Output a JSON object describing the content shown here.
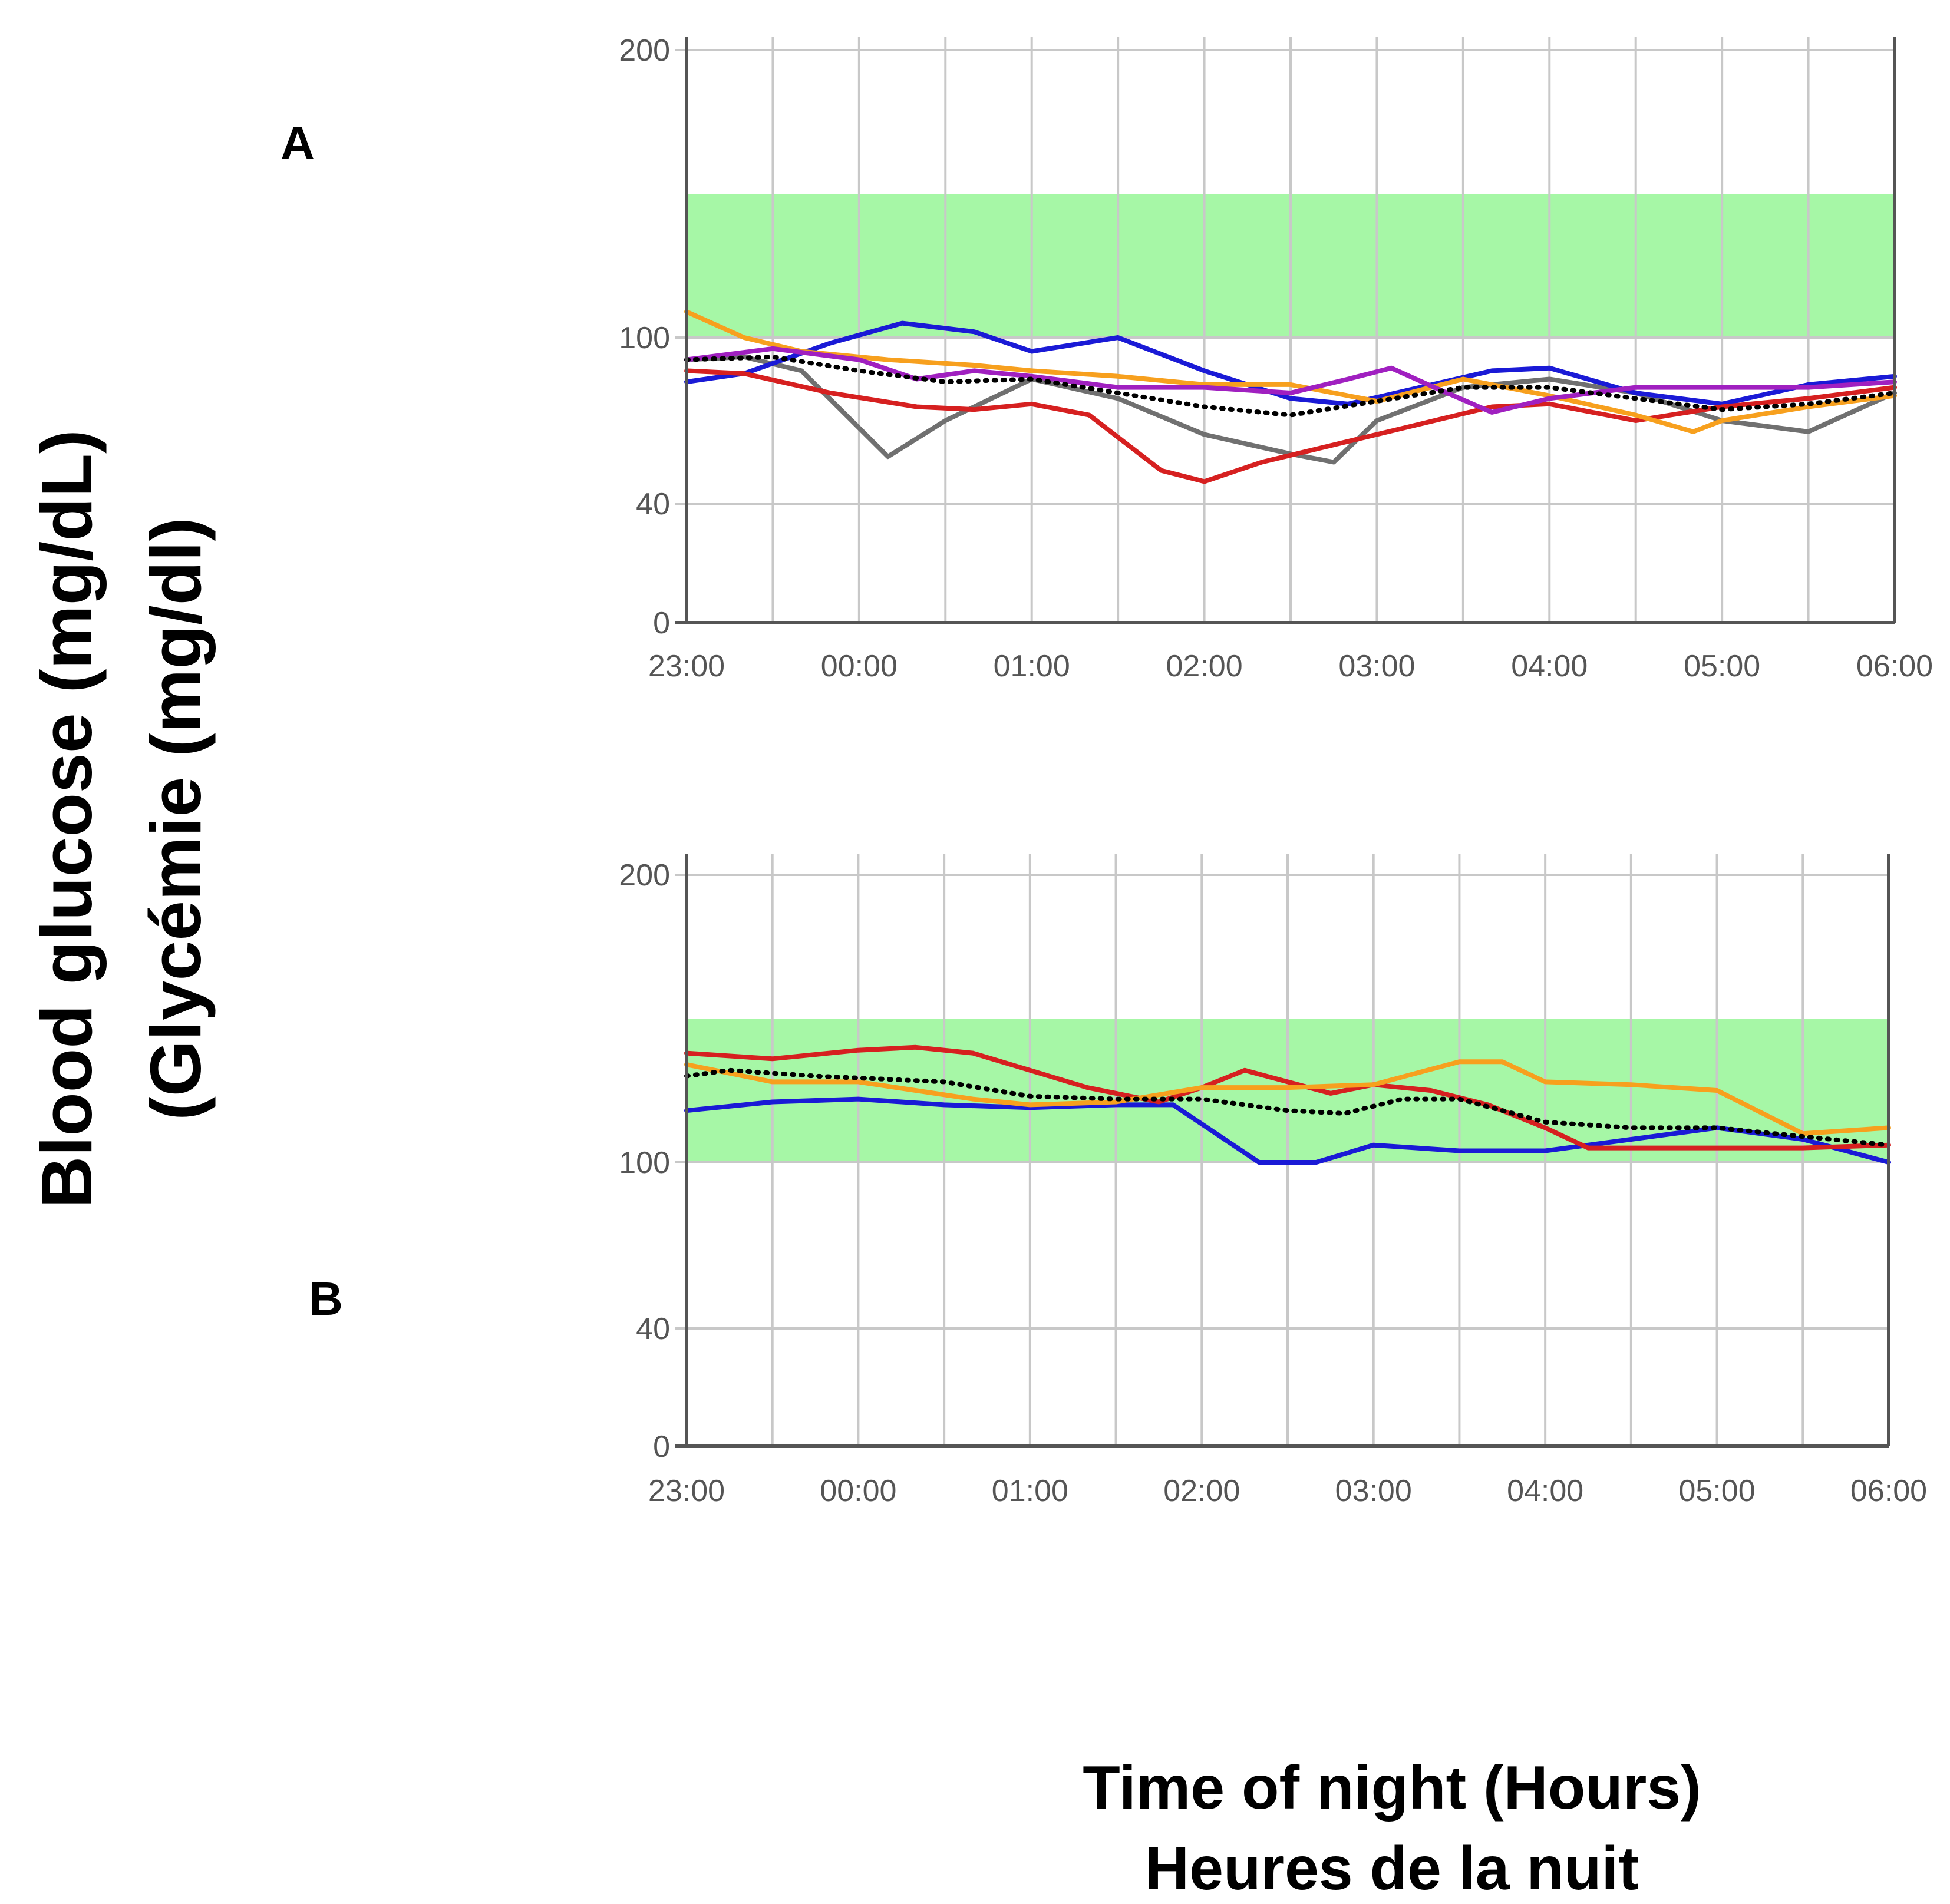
{
  "figure": {
    "ylabel_line1": "Blood glucose  (mg/dL)",
    "ylabel_line2": "(Glycémie (mg/dl)",
    "xlabel_line1": "Time of night (Hours)",
    "xlabel_line2": "Heures de la nuit"
  },
  "colors": {
    "target_band": "#a6f7a6",
    "blue": "#1a1ad6",
    "red": "#d62020",
    "orange": "#f7a01e",
    "gray": "#707070",
    "purple": "#a020c0",
    "mean": "#000000"
  },
  "chart_data": [
    {
      "type": "line",
      "panel": "A",
      "x_ticks": [
        "23:00",
        "00:00",
        "01:00",
        "02:00",
        "03:00",
        "04:00",
        "05:00",
        "06:00"
      ],
      "y_ticks": [
        0,
        40,
        100,
        200
      ],
      "xlim": [
        "23:00",
        "06:00"
      ],
      "ylim": [
        0,
        200
      ],
      "grid": true,
      "target_range": [
        100,
        150
      ],
      "series": [
        {
          "color": "gray",
          "x": [
            "23:00",
            "23:20",
            "23:40",
            "00:10",
            "00:30",
            "01:00",
            "01:30",
            "02:00",
            "02:30",
            "02:45",
            "03:00",
            "03:30",
            "04:00",
            "04:30",
            "05:00",
            "05:30",
            "06:00"
          ],
          "y": [
            92,
            93,
            88,
            57,
            70,
            85,
            78,
            65,
            58,
            55,
            70,
            82,
            85,
            80,
            70,
            66,
            80
          ]
        },
        {
          "color": "blue",
          "x": [
            "23:00",
            "23:20",
            "23:50",
            "00:15",
            "00:40",
            "01:00",
            "01:30",
            "02:00",
            "02:30",
            "02:50",
            "03:15",
            "03:40",
            "04:00",
            "04:30",
            "05:00",
            "05:30",
            "06:00"
          ],
          "y": [
            84,
            87,
            98,
            105,
            102,
            95,
            100,
            88,
            78,
            76,
            82,
            88,
            89,
            80,
            76,
            83,
            86
          ]
        },
        {
          "color": "red",
          "x": [
            "23:00",
            "23:20",
            "23:50",
            "00:20",
            "00:40",
            "01:00",
            "01:20",
            "01:45",
            "02:00",
            "02:20",
            "02:40",
            "03:00",
            "03:20",
            "03:40",
            "04:00",
            "04:30",
            "05:00",
            "05:30",
            "06:00"
          ],
          "y": [
            88,
            87,
            80,
            75,
            74,
            76,
            72,
            52,
            48,
            55,
            60,
            65,
            70,
            75,
            76,
            70,
            75,
            78,
            82
          ]
        },
        {
          "color": "orange",
          "x": [
            "23:00",
            "23:20",
            "23:40",
            "00:10",
            "00:40",
            "01:00",
            "01:30",
            "02:00",
            "02:30",
            "03:00",
            "03:30",
            "04:00",
            "04:30",
            "04:50",
            "05:00",
            "05:30",
            "06:00"
          ],
          "y": [
            109,
            100,
            95,
            92,
            90,
            88,
            86,
            83,
            83,
            77,
            85,
            79,
            72,
            66,
            70,
            75,
            79
          ]
        },
        {
          "color": "purple",
          "x": [
            "23:00",
            "23:30",
            "00:00",
            "00:20",
            "00:40",
            "01:00",
            "01:30",
            "02:00",
            "02:30",
            "02:50",
            "03:05",
            "03:20",
            "03:40",
            "04:00",
            "04:30",
            "05:00",
            "05:30",
            "06:00"
          ],
          "y": [
            92,
            96,
            92,
            85,
            88,
            86,
            82,
            82,
            80,
            85,
            89,
            82,
            73,
            78,
            82,
            82,
            82,
            84
          ]
        },
        {
          "color": "mean",
          "dashed": true,
          "x": [
            "23:00",
            "23:30",
            "00:00",
            "00:30",
            "01:00",
            "01:30",
            "02:00",
            "02:30",
            "03:00",
            "03:30",
            "04:00",
            "04:30",
            "05:00",
            "05:30",
            "06:00"
          ],
          "y": [
            92,
            93,
            88,
            84,
            85,
            80,
            75,
            72,
            77,
            82,
            82,
            78,
            74,
            76,
            80
          ]
        }
      ]
    },
    {
      "type": "line",
      "panel": "B",
      "x_ticks": [
        "23:00",
        "00:00",
        "01:00",
        "02:00",
        "03:00",
        "04:00",
        "05:00",
        "06:00"
      ],
      "y_ticks": [
        0,
        40,
        100,
        200
      ],
      "xlim": [
        "23:00",
        "06:00"
      ],
      "ylim": [
        0,
        200
      ],
      "grid": true,
      "target_range": [
        100,
        150
      ],
      "series": [
        {
          "color": "blue",
          "x": [
            "23:00",
            "23:30",
            "00:00",
            "00:30",
            "01:00",
            "01:30",
            "01:50",
            "02:20",
            "02:40",
            "03:00",
            "03:30",
            "04:00",
            "04:30",
            "05:00",
            "05:30",
            "06:00"
          ],
          "y": [
            118,
            121,
            122,
            120,
            119,
            120,
            120,
            100,
            100,
            106,
            104,
            104,
            108,
            112,
            108,
            100
          ]
        },
        {
          "color": "red",
          "x": [
            "23:00",
            "23:30",
            "00:00",
            "00:20",
            "00:40",
            "01:00",
            "01:20",
            "01:45",
            "02:00",
            "02:15",
            "02:30",
            "02:45",
            "03:00",
            "03:20",
            "03:40",
            "04:00",
            "04:15",
            "04:45",
            "05:00",
            "05:30",
            "06:00"
          ],
          "y": [
            138,
            136,
            139,
            140,
            138,
            132,
            126,
            121,
            126,
            132,
            128,
            124,
            127,
            125,
            120,
            112,
            105,
            105,
            105,
            105,
            106
          ]
        },
        {
          "color": "orange",
          "x": [
            "23:00",
            "23:30",
            "00:00",
            "00:40",
            "01:00",
            "01:30",
            "02:00",
            "02:30",
            "03:00",
            "03:30",
            "03:45",
            "04:00",
            "04:30",
            "05:00",
            "05:30",
            "06:00"
          ],
          "y": [
            134,
            128,
            128,
            122,
            120,
            121,
            126,
            126,
            127,
            135,
            135,
            128,
            127,
            125,
            110,
            112
          ]
        },
        {
          "color": "mean",
          "dashed": true,
          "x": [
            "23:00",
            "23:15",
            "23:45",
            "00:30",
            "01:00",
            "01:30",
            "02:00",
            "02:30",
            "02:50",
            "03:10",
            "03:30",
            "04:00",
            "04:30",
            "05:00",
            "05:30",
            "06:00"
          ],
          "y": [
            130,
            132,
            130,
            128,
            123,
            122,
            122,
            118,
            117,
            122,
            122,
            114,
            112,
            112,
            109,
            106
          ]
        }
      ]
    }
  ]
}
